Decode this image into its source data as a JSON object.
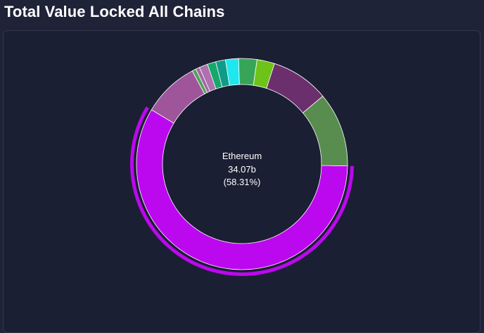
{
  "page": {
    "title": "Total Value Locked All Chains"
  },
  "chart_data": {
    "type": "pie",
    "variant": "donut",
    "title": "Total Value Locked All Chains",
    "highlighted": "Ethereum",
    "center": {
      "name": "Ethereum",
      "value_text": "34.07b",
      "percent_text": "(58.31%)"
    },
    "slices": [
      {
        "name": "Ethereum",
        "percent": 58.31,
        "color": "#bb08ee"
      },
      {
        "percent": 8.6,
        "color": "#9e559a"
      },
      {
        "percent": 0.6,
        "color": "#55a060"
      },
      {
        "percent": 0.6,
        "color": "#a06a9e"
      },
      {
        "percent": 1.3,
        "color": "#b070b0"
      },
      {
        "percent": 1.3,
        "color": "#16a86a"
      },
      {
        "percent": 1.5,
        "color": "#129a88"
      },
      {
        "percent": 2.0,
        "color": "#1ee8ee"
      },
      {
        "percent": 2.8,
        "color": "#37a558"
      },
      {
        "percent": 2.7,
        "color": "#6ec318"
      },
      {
        "percent": 8.9,
        "color": "#6b2f6d"
      },
      {
        "percent": 11.39,
        "color": "#588d4f"
      }
    ]
  }
}
